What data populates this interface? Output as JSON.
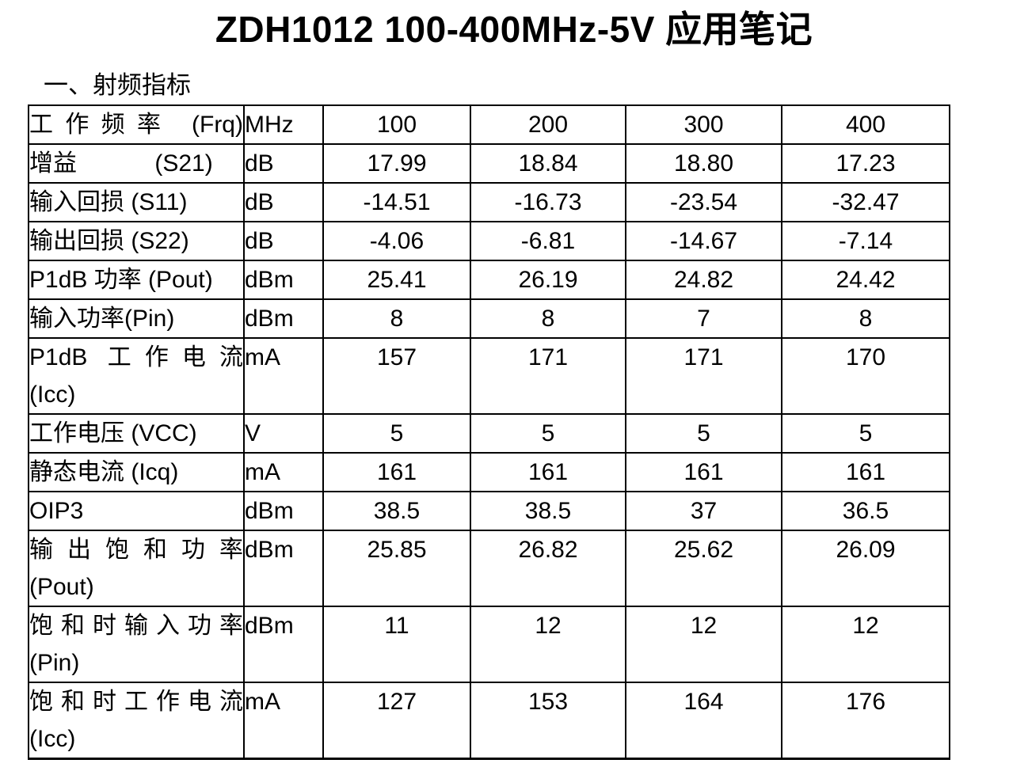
{
  "page": {
    "title": "ZDH1012 100-400MHz-5V 应用笔记",
    "section_heading": "一、射频指标"
  },
  "table": {
    "frequency_columns": [
      "100",
      "200",
      "300",
      "400"
    ],
    "rows": [
      {
        "label": "工作频率 (Frq)",
        "unit": "MHz",
        "values": [
          "100",
          "200",
          "300",
          "400"
        ]
      },
      {
        "label": "增益　　　 (S21)",
        "unit": "dB",
        "values": [
          "17.99",
          "18.84",
          "18.80",
          "17.23"
        ]
      },
      {
        "label": "输入回损 (S11)",
        "unit": "dB",
        "values": [
          "-14.51",
          "-16.73",
          "-23.54",
          "-32.47"
        ]
      },
      {
        "label": "输出回损 (S22)",
        "unit": "dB",
        "values": [
          "-4.06",
          "-6.81",
          "-14.67",
          "-7.14"
        ]
      },
      {
        "label": "P1dB 功率 (Pout)",
        "unit": "dBm",
        "values": [
          "25.41",
          "26.19",
          "24.82",
          "24.42"
        ]
      },
      {
        "label": "输入功率(Pin)",
        "unit": "dBm",
        "values": [
          "8",
          "8",
          "7",
          "8"
        ]
      },
      {
        "label": "P1dB 工作电流\n(Icc)",
        "unit": "mA",
        "values": [
          "157",
          "171",
          "171",
          "170"
        ]
      },
      {
        "label": "工作电压 (VCC)",
        "unit": "V",
        "values": [
          "5",
          "5",
          "5",
          "5"
        ]
      },
      {
        "label": "静态电流 (Icq)",
        "unit": "mA",
        "values": [
          "161",
          "161",
          "161",
          "161"
        ]
      },
      {
        "label": "OIP3",
        "unit": "dBm",
        "values": [
          "38.5",
          "38.5",
          "37",
          "36.5"
        ]
      },
      {
        "label": "输出饱和功率\n(Pout)",
        "unit": "dBm",
        "values": [
          "25.85",
          "26.82",
          "25.62",
          "26.09"
        ]
      },
      {
        "label": "饱和时输入功率\n(Pin)",
        "unit": "dBm",
        "values": [
          "11",
          "12",
          "12",
          "12"
        ]
      },
      {
        "label": "饱和时工作电流\n(Icc)",
        "unit": "mA",
        "values": [
          "127",
          "153",
          "164",
          "176"
        ]
      }
    ]
  }
}
